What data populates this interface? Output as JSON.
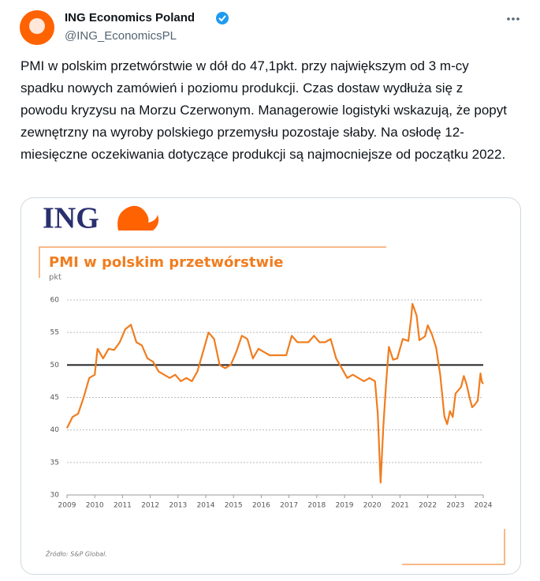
{
  "tweet": {
    "author": "ING Economics Poland",
    "handle": "@ING_EconomicsPL",
    "text": "PMI w polskim przetwórstwie w dół do 47,1pkt. przy największym od 3 m-cy spadku nowych zamówień i poziomu produkcji. Czas dostaw wydłuża się z powodu kryzysu na Morzu Czerwonym. Managerowie logistyki wskazują, że popyt zewnętrzny na wyroby polskiego przemysłu pozostaje słaby. Na osłodę 12-miesięczne oczekiwania dotyczące produkcji są najmocniejsze od początku 2022."
  },
  "logo": "ING",
  "chart_data": {
    "type": "line",
    "title": "PMI w polskim przetwórstwie",
    "ylabel": "pkt",
    "source": "Źródło: S&P Global.",
    "xlim": [
      2009,
      2024
    ],
    "xticks": [
      2009,
      2010,
      2011,
      2012,
      2013,
      2014,
      2015,
      2016,
      2017,
      2018,
      2019,
      2020,
      2021,
      2022,
      2023,
      2024
    ],
    "ylim": [
      30,
      60
    ],
    "yticks": [
      30,
      35,
      40,
      45,
      50,
      55,
      60
    ],
    "grid": true,
    "reference_line": 50,
    "series": [
      {
        "name": "PMI",
        "color": "#f07d1f",
        "x": [
          2009.0,
          2009.2,
          2009.4,
          2009.6,
          2009.8,
          2010.0,
          2010.1,
          2010.3,
          2010.5,
          2010.7,
          2010.9,
          2011.1,
          2011.3,
          2011.5,
          2011.7,
          2011.9,
          2012.1,
          2012.3,
          2012.5,
          2012.7,
          2012.9,
          2013.1,
          2013.3,
          2013.5,
          2013.7,
          2013.9,
          2014.1,
          2014.3,
          2014.5,
          2014.7,
          2014.9,
          2015.1,
          2015.3,
          2015.5,
          2015.7,
          2015.9,
          2016.1,
          2016.3,
          2016.5,
          2016.7,
          2016.9,
          2017.1,
          2017.3,
          2017.5,
          2017.7,
          2017.9,
          2018.1,
          2018.3,
          2018.5,
          2018.7,
          2018.9,
          2019.1,
          2019.3,
          2019.5,
          2019.7,
          2019.9,
          2020.1,
          2020.2,
          2020.3,
          2020.4,
          2020.5,
          2020.6,
          2020.75,
          2020.9,
          2021.1,
          2021.3,
          2021.4,
          2021.45,
          2021.6,
          2021.7,
          2021.9,
          2022.0,
          2022.15,
          2022.3,
          2022.45,
          2022.6,
          2022.7,
          2022.8,
          2022.9,
          2023.0,
          2023.2,
          2023.3,
          2023.4,
          2023.5,
          2023.6,
          2023.7,
          2023.8,
          2023.9,
          2023.95,
          2024.0
        ],
        "values": [
          40.3,
          42,
          42.5,
          45,
          48,
          48.5,
          52.5,
          51,
          52.5,
          52.3,
          53.5,
          55.5,
          56.2,
          53.5,
          53,
          51,
          50.5,
          49,
          48.5,
          48,
          48.5,
          47.5,
          48,
          47.5,
          49,
          52,
          55,
          54,
          50,
          49.5,
          50,
          52,
          54.5,
          54,
          51,
          52.5,
          52,
          51.5,
          51.5,
          51.5,
          51.5,
          54.5,
          53.5,
          53.5,
          53.5,
          54.5,
          53.5,
          53.5,
          54,
          51,
          49.5,
          48,
          48.5,
          48,
          47.5,
          48,
          47.5,
          42.5,
          31.9,
          40.6,
          47.2,
          52.8,
          50.8,
          51,
          54,
          53.7,
          57.2,
          59.4,
          57.6,
          53.8,
          54.4,
          56.1,
          54.7,
          52.7,
          48.5,
          42.1,
          40.9,
          42.9,
          42,
          45.6,
          46.6,
          48.3,
          47,
          45.1,
          43.5,
          43.9,
          44.5,
          48.7,
          47.4,
          47.1
        ]
      }
    ]
  }
}
